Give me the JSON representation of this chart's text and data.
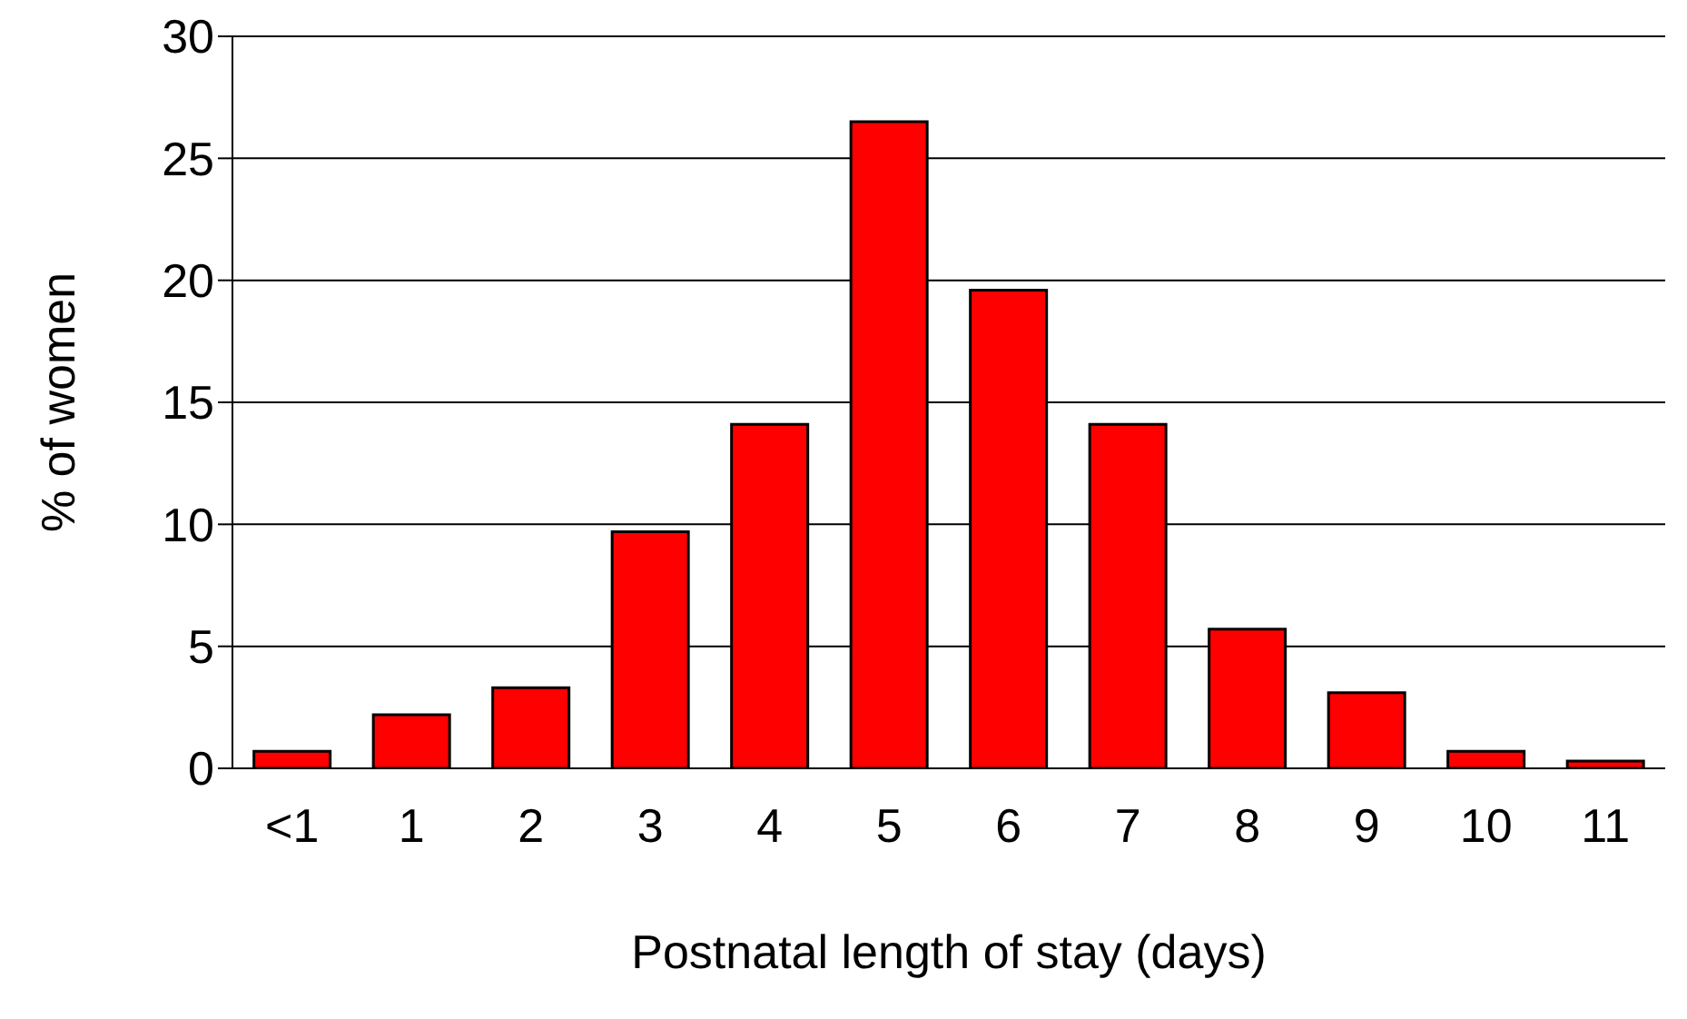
{
  "chart_data": {
    "type": "bar",
    "xlabel": "Postnatal length of stay (days)",
    "ylabel": "% of women",
    "categories": [
      "<1",
      "1",
      "2",
      "3",
      "4",
      "5",
      "6",
      "7",
      "8",
      "9",
      "10",
      "11"
    ],
    "values": [
      0.7,
      2.2,
      3.3,
      9.7,
      14.1,
      26.5,
      19.6,
      14.1,
      5.7,
      3.1,
      0.7,
      0.3
    ],
    "color": "#ff0000",
    "ylim": [
      0,
      30
    ],
    "yticks": [
      0,
      5,
      10,
      15,
      20,
      25,
      30
    ],
    "grid": "y"
  }
}
